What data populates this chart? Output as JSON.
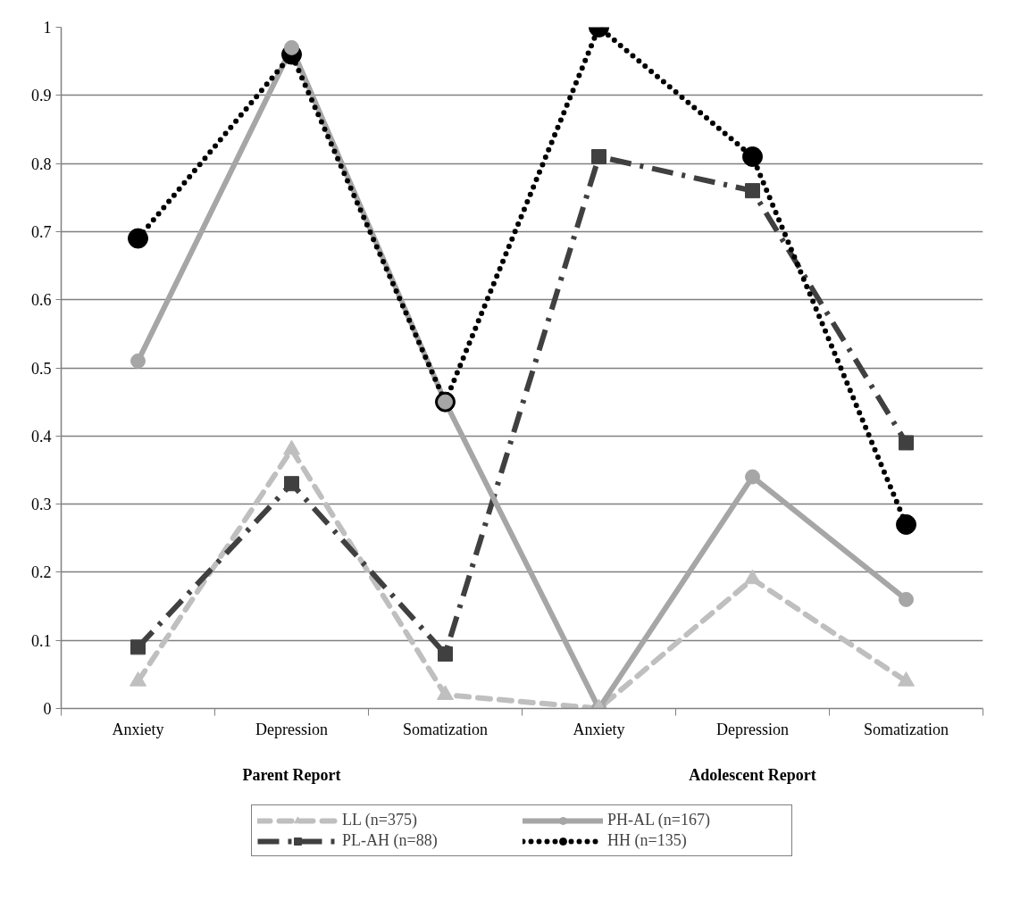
{
  "chart_data": {
    "type": "line",
    "categories": [
      "Anxiety",
      "Depression",
      "Somatization",
      "Anxiety",
      "Depression",
      "Somatization"
    ],
    "annotations": [
      "Parent Report",
      "Adolescent Report"
    ],
    "series": [
      {
        "name": "LL (n=375)",
        "color": "#bfbfbf",
        "values": [
          0.04,
          0.38,
          0.02,
          0.0,
          0.19,
          0.04
        ],
        "marker": "triangle",
        "line_style": "dashed"
      },
      {
        "name": "PL-AH (n=88)",
        "color": "#404040",
        "values": [
          0.09,
          0.33,
          0.08,
          0.81,
          0.76,
          0.39
        ],
        "marker": "square",
        "line_style": "dashdot"
      },
      {
        "name": "PH-AL (n=167)",
        "color": "#a6a6a6",
        "values": [
          0.51,
          0.97,
          0.45,
          0.0,
          0.34,
          0.16
        ],
        "marker": "circle",
        "line_style": "solid"
      },
      {
        "name": "HH (n=135)",
        "color": "#000000",
        "values": [
          0.69,
          0.96,
          0.45,
          1.0,
          0.81,
          0.27
        ],
        "marker": "circle",
        "line_style": "dotted"
      }
    ],
    "ylim": [
      0,
      1
    ],
    "yticks": [
      0,
      0.1,
      0.2,
      0.3,
      0.4,
      0.5,
      0.6,
      0.7,
      0.8,
      0.9,
      1
    ],
    "grid": "y",
    "legend": "bottom"
  }
}
